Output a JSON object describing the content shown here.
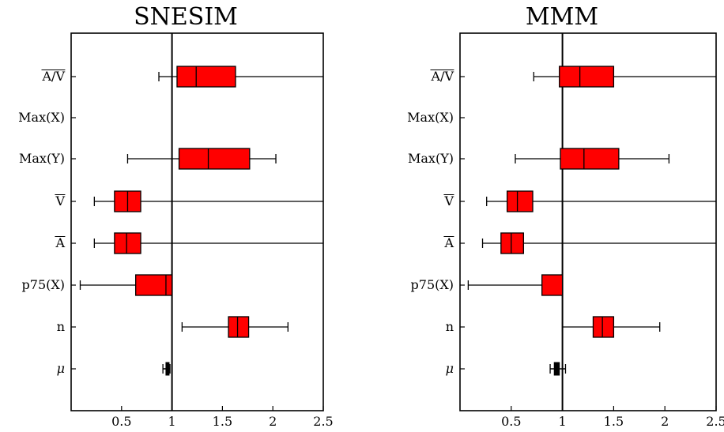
{
  "chart_data": [
    {
      "type": "boxplot",
      "title": "SNESIM",
      "xlabel": "",
      "ylabel": "",
      "xlim": [
        0,
        2.5
      ],
      "xticks": [
        "0.5",
        "1",
        "1.5",
        "2",
        "2.5"
      ],
      "reference_line": 1,
      "categories": [
        "A/V",
        "Max(X)",
        "Max(Y)",
        "V",
        "A",
        "p75(X)",
        "n",
        "μ"
      ],
      "boxes": [
        {
          "label": "A/V",
          "whisker_low": 0.87,
          "q1": 1.05,
          "median": 1.24,
          "q3": 1.63,
          "whisker_high": 2.5
        },
        {
          "label": "Max(X)",
          "whisker_low": null,
          "q1": null,
          "median": null,
          "q3": null,
          "whisker_high": null
        },
        {
          "label": "Max(Y)",
          "whisker_low": 0.56,
          "q1": 1.07,
          "median": 1.36,
          "q3": 1.77,
          "whisker_high": 2.03
        },
        {
          "label": "V",
          "whisker_low": 0.23,
          "q1": 0.43,
          "median": 0.56,
          "q3": 0.69,
          "whisker_high": 2.5
        },
        {
          "label": "A",
          "whisker_low": 0.23,
          "q1": 0.43,
          "median": 0.55,
          "q3": 0.69,
          "whisker_high": 2.5
        },
        {
          "label": "p75(X)",
          "whisker_low": 0.09,
          "q1": 0.64,
          "median": 0.94,
          "q3": 1.0,
          "whisker_high": 1.0
        },
        {
          "label": "n",
          "whisker_low": 1.1,
          "q1": 1.56,
          "median": 1.65,
          "q3": 1.76,
          "whisker_high": 2.15
        },
        {
          "label": "μ",
          "whisker_low": 0.91,
          "q1": 0.94,
          "median": 0.955,
          "q3": 0.97,
          "whisker_high": 0.98
        }
      ]
    },
    {
      "type": "boxplot",
      "title": "MMM",
      "xlabel": "",
      "ylabel": "",
      "xlim": [
        0,
        2.5
      ],
      "xticks": [
        "0.5",
        "1",
        "1.5",
        "2",
        "2.5"
      ],
      "reference_line": 1,
      "categories": [
        "A/V",
        "Max(X)",
        "Max(Y)",
        "V",
        "A",
        "p75(X)",
        "n",
        "μ"
      ],
      "boxes": [
        {
          "label": "A/V",
          "whisker_low": 0.72,
          "q1": 0.97,
          "median": 1.17,
          "q3": 1.5,
          "whisker_high": 2.5
        },
        {
          "label": "Max(X)",
          "whisker_low": null,
          "q1": null,
          "median": null,
          "q3": null,
          "whisker_high": null
        },
        {
          "label": "Max(Y)",
          "whisker_low": 0.54,
          "q1": 0.98,
          "median": 1.21,
          "q3": 1.55,
          "whisker_high": 2.04
        },
        {
          "label": "V",
          "whisker_low": 0.26,
          "q1": 0.46,
          "median": 0.56,
          "q3": 0.71,
          "whisker_high": 2.5
        },
        {
          "label": "A",
          "whisker_low": 0.22,
          "q1": 0.4,
          "median": 0.5,
          "q3": 0.62,
          "whisker_high": 2.5
        },
        {
          "label": "p75(X)",
          "whisker_low": 0.08,
          "q1": 0.8,
          "median": 1.0,
          "q3": 1.0,
          "whisker_high": 1.0
        },
        {
          "label": "n",
          "whisker_low": 1.0,
          "q1": 1.3,
          "median": 1.39,
          "q3": 1.5,
          "whisker_high": 1.95
        },
        {
          "label": "μ",
          "whisker_low": 0.88,
          "q1": 0.92,
          "median": 0.94,
          "q3": 0.97,
          "whisker_high": 1.03
        }
      ]
    }
  ],
  "colors": {
    "box_fill": "#ff0000",
    "line": "#000000"
  }
}
